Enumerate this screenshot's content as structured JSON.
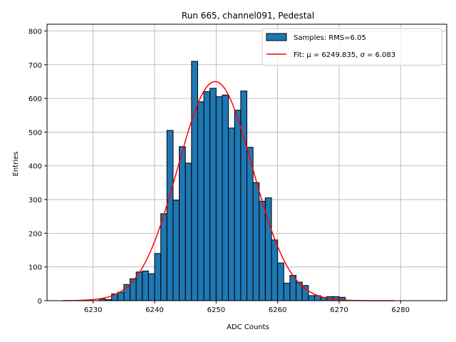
{
  "chart_data": {
    "type": "bar",
    "title": "Run 665, channel091, Pedestal",
    "xlabel": "ADC Counts",
    "ylabel": "Entries",
    "xlim": [
      6222.5,
      6287.5
    ],
    "ylim": [
      0,
      820
    ],
    "xticks": [
      6230,
      6240,
      6250,
      6260,
      6270,
      6280
    ],
    "yticks": [
      0,
      100,
      200,
      300,
      400,
      500,
      600,
      700,
      800
    ],
    "grid": true,
    "legend_position": "top-right",
    "colors": {
      "bars": "#1f77b4",
      "bar_edge": "#000000",
      "fit": "#ff0000",
      "grid": "#b0b0b0"
    },
    "histogram": {
      "name": "Samples: RMS=6.05",
      "bin_width": 1,
      "bin_lefts": [
        6231,
        6232,
        6233,
        6234,
        6235,
        6236,
        6237,
        6238,
        6239,
        6240,
        6241,
        6242,
        6243,
        6244,
        6245,
        6246,
        6247,
        6248,
        6249,
        6250,
        6251,
        6252,
        6253,
        6254,
        6255,
        6256,
        6257,
        6258,
        6259,
        6260,
        6261,
        6262,
        6263,
        6264,
        6265,
        6266,
        6267,
        6268,
        6269,
        6270
      ],
      "counts": [
        5,
        3,
        20,
        25,
        48,
        65,
        85,
        88,
        80,
        140,
        258,
        505,
        298,
        457,
        408,
        710,
        590,
        620,
        630,
        605,
        610,
        512,
        565,
        622,
        455,
        350,
        295,
        305,
        180,
        112,
        52,
        75,
        55,
        45,
        15,
        15,
        10,
        12,
        12,
        10
      ]
    },
    "fit": {
      "name": "Fit: $\\mu$ = 6249.835, $\\sigma$ = 6.083",
      "label_plain": "Fit: μ = 6249.835, σ = 6.083",
      "mu": 6249.835,
      "sigma": 6.083,
      "amplitude": 650,
      "x_range": [
        6225,
        6279
      ]
    }
  }
}
